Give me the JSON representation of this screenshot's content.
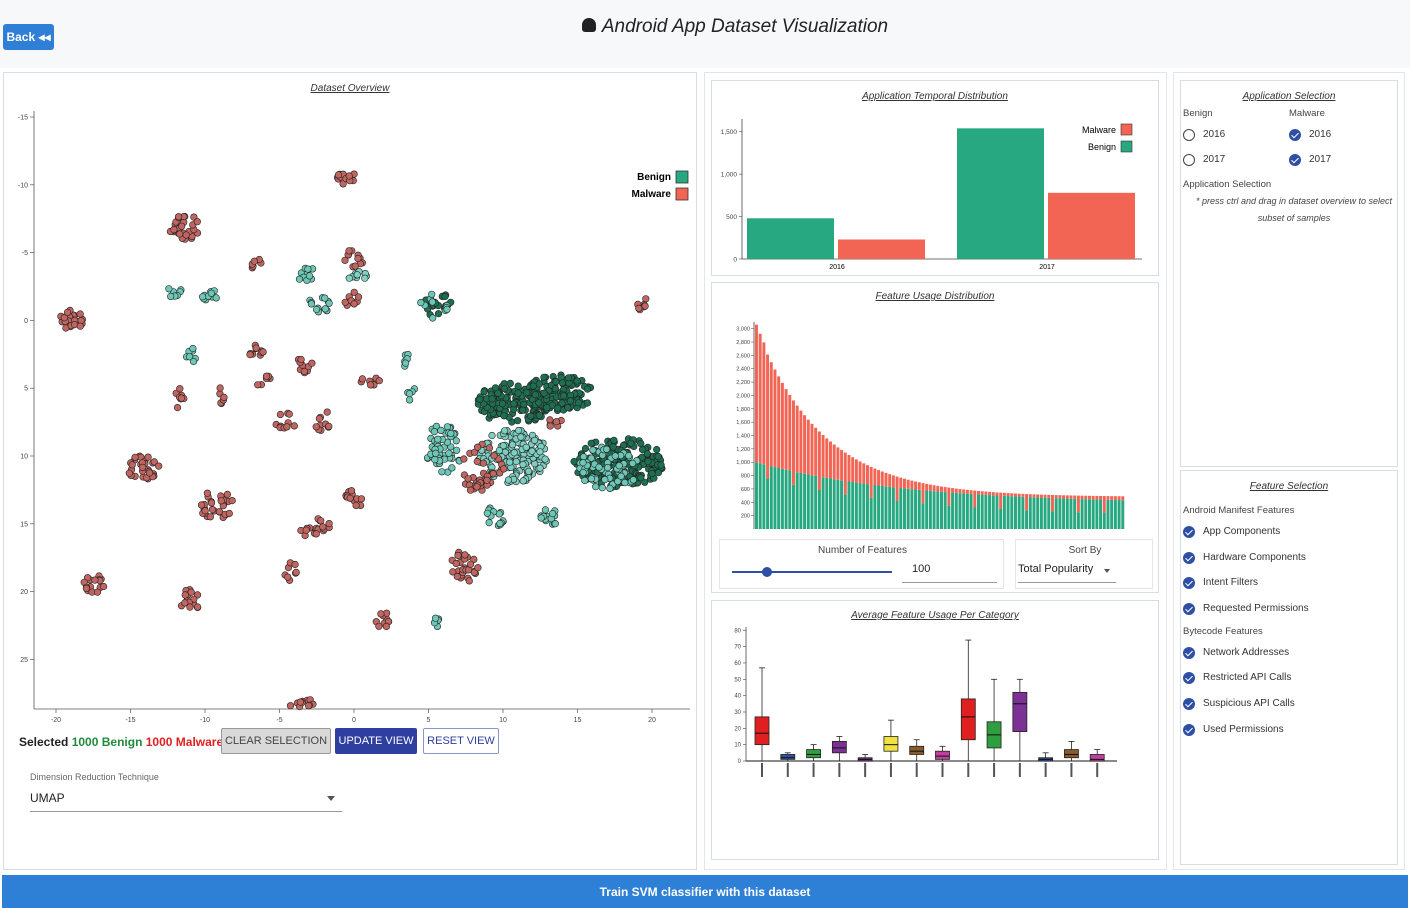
{
  "header": {
    "back_label": "Back ◂◂",
    "title": "Android App Dataset Visualization"
  },
  "overview": {
    "title": "Dataset Overview",
    "legend": [
      {
        "name": "Benign",
        "color": "#27a880"
      },
      {
        "name": "Malware",
        "color": "#f26555"
      }
    ],
    "x_ticks": [
      "-20",
      "-15",
      "-10",
      "-5",
      "0",
      "5",
      "10",
      "15",
      "20"
    ],
    "y_ticks": [
      "-15",
      "-10",
      "-5",
      "0",
      "5",
      "10",
      "15",
      "20",
      "25"
    ],
    "selection": {
      "prefix": "Selected",
      "benign": "1000 Benign",
      "malware": "1000 Malware"
    },
    "buttons": {
      "clear": "CLEAR SELECTION",
      "update": "UPDATE VIEW",
      "reset": "RESET VIEW"
    },
    "reduction": {
      "label": "Dimension Reduction Technique",
      "value": "UMAP"
    }
  },
  "temporal": {
    "title": "Application Temporal Distribution",
    "legend": [
      "Malware",
      "Benign"
    ],
    "y_ticks": [
      "0",
      "500",
      "1,000",
      "1,500"
    ]
  },
  "feature_usage": {
    "title": "Feature Usage Distribution",
    "y_ticks": [
      "200",
      "400",
      "600",
      "800",
      "1,000",
      "1,200",
      "1,400",
      "1,600",
      "1,800",
      "2,000",
      "2,200",
      "2,400",
      "2,600",
      "2,800",
      "3,000"
    ],
    "num_features_label": "Number of Features",
    "num_features_value": "100",
    "sort_label": "Sort By",
    "sort_value": "Total Popularity"
  },
  "category": {
    "title": "Average Feature Usage Per Category",
    "y_ticks": [
      "0",
      "10",
      "20",
      "30",
      "40",
      "50",
      "60",
      "70",
      "80"
    ]
  },
  "app_selection": {
    "title": "Application Selection",
    "benign_label": "Benign",
    "malware_label": "Malware",
    "benign_opts": [
      "2016",
      "2017"
    ],
    "malware_opts": [
      "2016",
      "2017"
    ],
    "sub_label": "Application Selection",
    "note": "* press ctrl and drag in dataset overview to select subset of samples"
  },
  "feature_selection": {
    "title": "Feature Selection",
    "manifest_label": "Android Manifest Features",
    "manifest": [
      "App Components",
      "Hardware Components",
      "Intent Filters",
      "Requested Permissions"
    ],
    "bytecode_label": "Bytecode Features",
    "bytecode": [
      "Network Addresses",
      "Restricted API Calls",
      "Suspicious API Calls",
      "Used Permissions"
    ]
  },
  "train_label": "Train SVM classifier with this dataset",
  "chart_data": [
    {
      "type": "bar",
      "title": "Application Temporal Distribution",
      "categories": [
        "2016",
        "2017"
      ],
      "series": [
        {
          "name": "Benign",
          "values": [
            480,
            1540
          ],
          "color": "#27a880"
        },
        {
          "name": "Malware",
          "values": [
            230,
            780
          ],
          "color": "#f26555"
        }
      ],
      "ylim": [
        0,
        1650
      ],
      "legend": "top-right"
    },
    {
      "type": "bar",
      "title": "Feature Usage Distribution",
      "stacked": true,
      "n_features": 100,
      "series": [
        {
          "name": "Benign",
          "color": "#27a880"
        },
        {
          "name": "Malware",
          "color": "#f26555"
        }
      ],
      "ylim": [
        0,
        3100
      ]
    },
    {
      "type": "box",
      "title": "Average Feature Usage Per Category",
      "ylim": [
        0,
        82
      ],
      "boxes": [
        {
          "color": "#e02020",
          "min": 0,
          "q1": 10,
          "median": 17,
          "q3": 27,
          "max": 57
        },
        {
          "color": "#2e4fa3",
          "min": 0,
          "q1": 1,
          "median": 2,
          "q3": 4,
          "max": 5
        },
        {
          "color": "#2f9e3f",
          "min": 0,
          "q1": 2,
          "median": 4,
          "q3": 7,
          "max": 10
        },
        {
          "color": "#7b3294",
          "min": 0,
          "q1": 5,
          "median": 8,
          "q3": 12,
          "max": 15
        },
        {
          "color": "#7b3294",
          "min": 0,
          "q1": 0,
          "median": 1,
          "q3": 2,
          "max": 4
        },
        {
          "color": "#f0e040",
          "min": 0,
          "q1": 6,
          "median": 10,
          "q3": 15,
          "max": 25
        },
        {
          "color": "#8b5a2b",
          "min": 0,
          "q1": 4,
          "median": 6,
          "q3": 9,
          "max": 13
        },
        {
          "color": "#c040a0",
          "min": 0,
          "q1": 1,
          "median": 3,
          "q3": 6,
          "max": 9
        },
        {
          "color": "#e02020",
          "min": 0,
          "q1": 13,
          "median": 27,
          "q3": 38,
          "max": 74
        },
        {
          "color": "#2f9e3f",
          "min": 0,
          "q1": 8,
          "median": 16,
          "q3": 24,
          "max": 50
        },
        {
          "color": "#7b3294",
          "min": 0,
          "q1": 18,
          "median": 35,
          "q3": 42,
          "max": 50
        },
        {
          "color": "#2e4fa3",
          "min": 0,
          "q1": 0,
          "median": 1,
          "q3": 2,
          "max": 5
        },
        {
          "color": "#8b5a2b",
          "min": 0,
          "q1": 2,
          "median": 4,
          "q3": 7,
          "max": 12
        },
        {
          "color": "#c040a0",
          "min": 0,
          "q1": 0,
          "median": 1,
          "q3": 4,
          "max": 7
        }
      ]
    }
  ]
}
